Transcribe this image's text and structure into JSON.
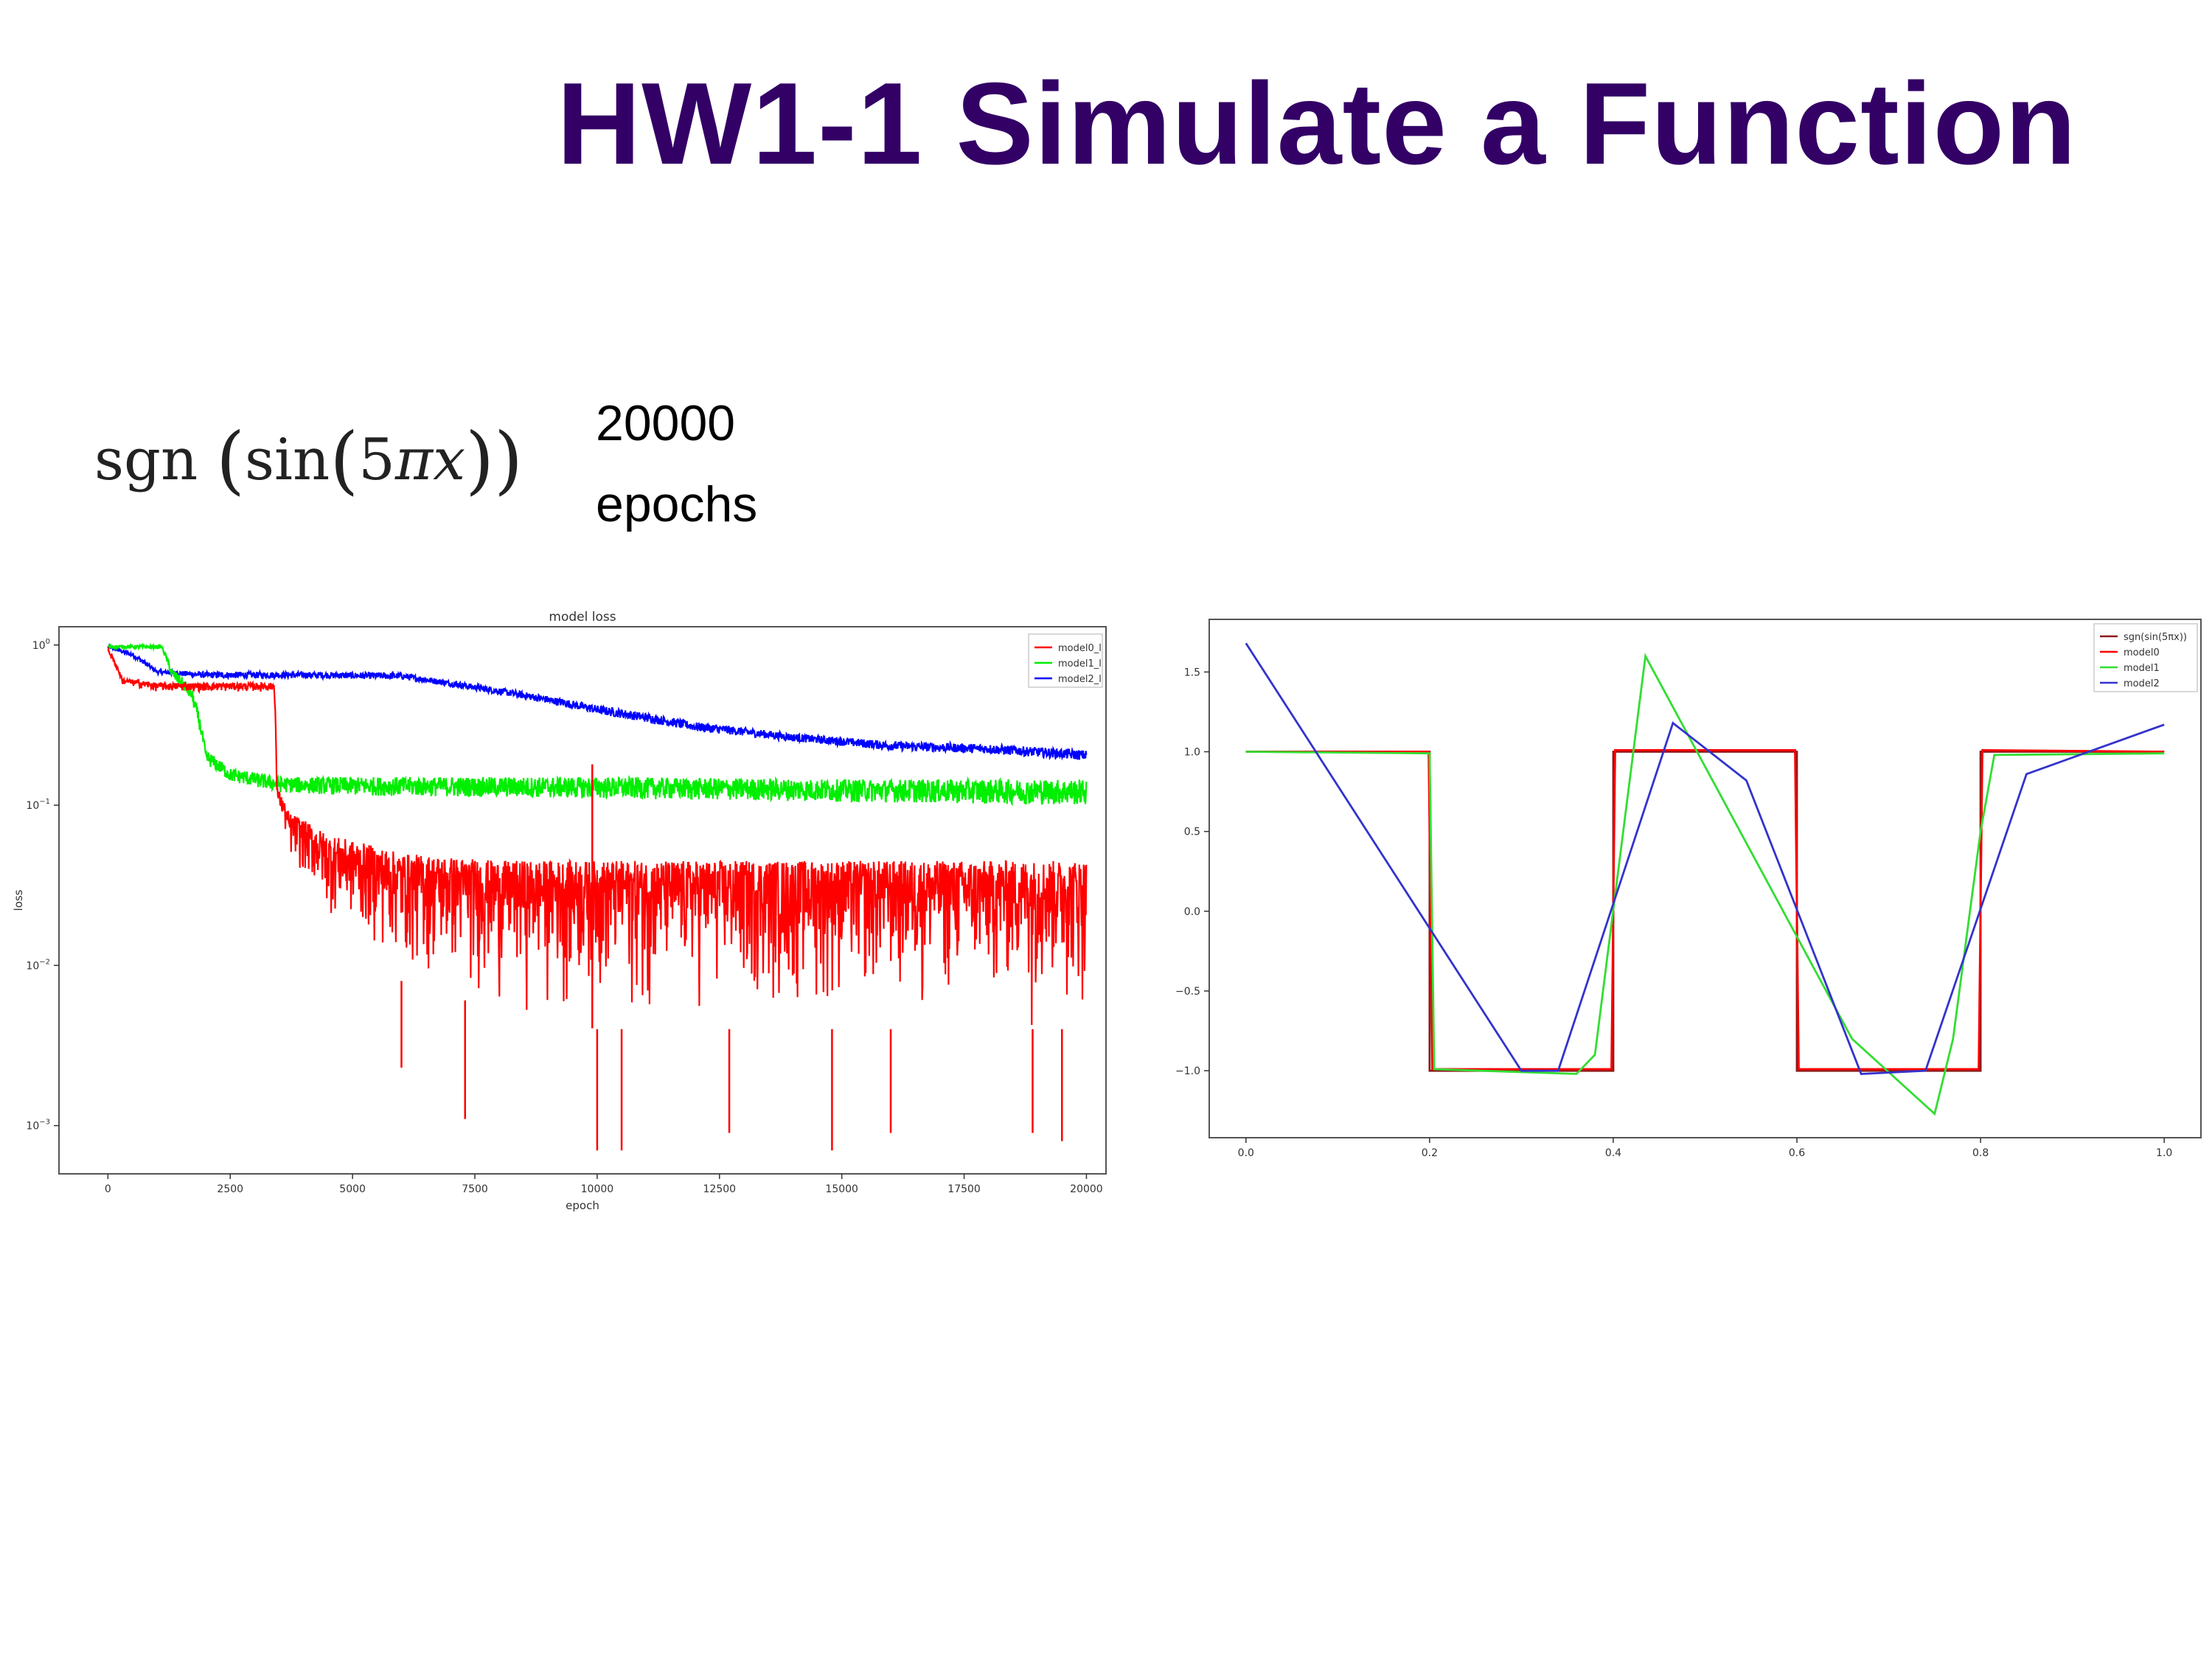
{
  "slide": {
    "title": "HW1-1 Simulate a Function",
    "formula": {
      "fn": "sgn",
      "inner": "sin",
      "arg_coef": "5",
      "arg_pi": "π",
      "arg_var": "x"
    },
    "epochs_number": "20000",
    "epochs_word": "epochs"
  },
  "chart_data": [
    {
      "type": "line",
      "title": "model loss",
      "xlabel": "epoch",
      "ylabel": "loss",
      "yscale": "log",
      "xlim": [
        -1000,
        20400
      ],
      "ylim": [
        0.0005,
        1.3
      ],
      "xticks": [
        {
          "v": 0,
          "label": "0"
        },
        {
          "v": 2500,
          "label": "2500"
        },
        {
          "v": 5000,
          "label": "5000"
        },
        {
          "v": 7500,
          "label": "7500"
        },
        {
          "v": 10000,
          "label": "10000"
        },
        {
          "v": 12500,
          "label": "12500"
        },
        {
          "v": 15000,
          "label": "15000"
        },
        {
          "v": 17500,
          "label": "17500"
        },
        {
          "v": 20000,
          "label": "20000"
        }
      ],
      "yticks": [
        {
          "v": 1,
          "b": "10",
          "e": "0"
        },
        {
          "v": 0.1,
          "b": "10",
          "e": "−1"
        },
        {
          "v": 0.01,
          "b": "10",
          "e": "−2"
        },
        {
          "v": 0.001,
          "b": "10",
          "e": "−3"
        }
      ],
      "legend": {
        "position": "top-right",
        "entries": [
          {
            "label": "model0_l",
            "color": "#ff0000"
          },
          {
            "label": "model1_l",
            "color": "#00ee00"
          },
          {
            "label": "model2_l",
            "color": "#0000ff"
          }
        ]
      },
      "series": [
        {
          "color": "#0000ff",
          "envelope": [
            [
              0,
              1.0,
              0.95
            ],
            [
              500,
              0.9,
              0.84
            ],
            [
              1000,
              0.7,
              0.66
            ],
            [
              2000,
              0.68,
              0.62
            ],
            [
              4000,
              0.68,
              0.62
            ],
            [
              6000,
              0.67,
              0.61
            ],
            [
              7000,
              0.6,
              0.55
            ],
            [
              9000,
              0.48,
              0.43
            ],
            [
              10000,
              0.42,
              0.37
            ],
            [
              12000,
              0.33,
              0.29
            ],
            [
              14000,
              0.28,
              0.25
            ],
            [
              16000,
              0.25,
              0.22
            ],
            [
              18000,
              0.24,
              0.21
            ],
            [
              20000,
              0.22,
              0.19
            ]
          ]
        },
        {
          "color": "#00ee00",
          "envelope": [
            [
              0,
              1.0,
              0.95
            ],
            [
              1100,
              1.0,
              0.95
            ],
            [
              1300,
              0.72,
              0.62
            ],
            [
              1700,
              0.55,
              0.45
            ],
            [
              2000,
              0.22,
              0.18
            ],
            [
              2500,
              0.17,
              0.14
            ],
            [
              3500,
              0.15,
              0.12
            ],
            [
              5000,
              0.15,
              0.115
            ],
            [
              10000,
              0.15,
              0.11
            ],
            [
              15000,
              0.145,
              0.105
            ],
            [
              20000,
              0.145,
              0.1
            ]
          ]
        },
        {
          "color": "#ff0000",
          "envelope": [
            [
              0,
              0.95,
              0.9
            ],
            [
              300,
              0.62,
              0.56
            ],
            [
              1000,
              0.58,
              0.51
            ],
            [
              3400,
              0.58,
              0.51
            ],
            [
              3450,
              0.13,
              0.11
            ],
            [
              3700,
              0.09,
              0.045
            ],
            [
              4500,
              0.065,
              0.02
            ],
            [
              6000,
              0.05,
              0.008
            ],
            [
              8000,
              0.045,
              0.005
            ],
            [
              10000,
              0.045,
              0.004
            ],
            [
              14000,
              0.045,
              0.004
            ],
            [
              20000,
              0.045,
              0.004
            ]
          ]
        }
      ],
      "red_spikes": [
        {
          "x": 9900,
          "y": 0.18
        },
        {
          "x": 10000,
          "y": 0.0007
        },
        {
          "x": 10500,
          "y": 0.0007
        },
        {
          "x": 14800,
          "y": 0.0007
        },
        {
          "x": 16000,
          "y": 0.0009
        },
        {
          "x": 19500,
          "y": 0.0008
        },
        {
          "x": 7300,
          "y": 0.0011
        },
        {
          "x": 6000,
          "y": 0.0023
        },
        {
          "x": 12700,
          "y": 0.0009
        },
        {
          "x": 18900,
          "y": 0.0009
        }
      ]
    },
    {
      "type": "line",
      "title": "",
      "xlim": [
        -0.04,
        1.04
      ],
      "ylim": [
        -1.42,
        1.83
      ],
      "xticks": [
        {
          "v": 0,
          "label": "0.0"
        },
        {
          "v": 0.2,
          "label": "0.2"
        },
        {
          "v": 0.4,
          "label": "0.4"
        },
        {
          "v": 0.6,
          "label": "0.6"
        },
        {
          "v": 0.8,
          "label": "0.8"
        },
        {
          "v": 1.0,
          "label": "1.0"
        }
      ],
      "yticks": [
        {
          "v": 1.5,
          "label": "1.5"
        },
        {
          "v": 1.0,
          "label": "1.0"
        },
        {
          "v": 0.5,
          "label": "0.5"
        },
        {
          "v": 0.0,
          "label": "0.0"
        },
        {
          "v": -0.5,
          "label": "−0.5"
        },
        {
          "v": -1.0,
          "label": "−1.0"
        }
      ],
      "legend": {
        "position": "top-right",
        "entries": [
          {
            "label": "sgn(sin(5πx))",
            "color": "#8b1a1a"
          },
          {
            "label": "model0",
            "color": "#ff0000"
          },
          {
            "label": "model1",
            "color": "#33dd33"
          },
          {
            "label": "model2",
            "color": "#3333cc"
          }
        ]
      },
      "series": [
        {
          "name": "sgn(sin(5πx))",
          "color": "#8b1a1a",
          "x": [
            0,
            0.2,
            0.2,
            0.4,
            0.4,
            0.6,
            0.6,
            0.8,
            0.8,
            1.0
          ],
          "y": [
            1,
            1,
            -1,
            -1,
            1,
            1,
            -1,
            -1,
            1,
            1
          ]
        },
        {
          "name": "model0",
          "color": "#ff0000",
          "x": [
            0,
            0.199,
            0.203,
            0.398,
            0.402,
            0.598,
            0.602,
            0.798,
            0.802,
            1.0
          ],
          "y": [
            1.0,
            1.0,
            -0.99,
            -0.99,
            1.01,
            1.01,
            -0.99,
            -0.99,
            1.01,
            1.0
          ]
        },
        {
          "name": "model1",
          "color": "#33dd33",
          "x": [
            0,
            0.2,
            0.205,
            0.36,
            0.38,
            0.435,
            0.66,
            0.75,
            0.77,
            0.8,
            0.815,
            1.0
          ],
          "y": [
            1.0,
            0.99,
            -0.99,
            -1.02,
            -0.9,
            1.6,
            -0.8,
            -1.27,
            -0.8,
            0.5,
            0.98,
            0.99
          ]
        },
        {
          "name": "model2",
          "color": "#3333cc",
          "x": [
            0,
            0.3,
            0.34,
            0.465,
            0.545,
            0.67,
            0.74,
            0.85,
            1.0
          ],
          "y": [
            1.68,
            -1.0,
            -1.0,
            1.18,
            0.82,
            -1.02,
            -1.0,
            0.86,
            1.17
          ]
        }
      ]
    }
  ]
}
